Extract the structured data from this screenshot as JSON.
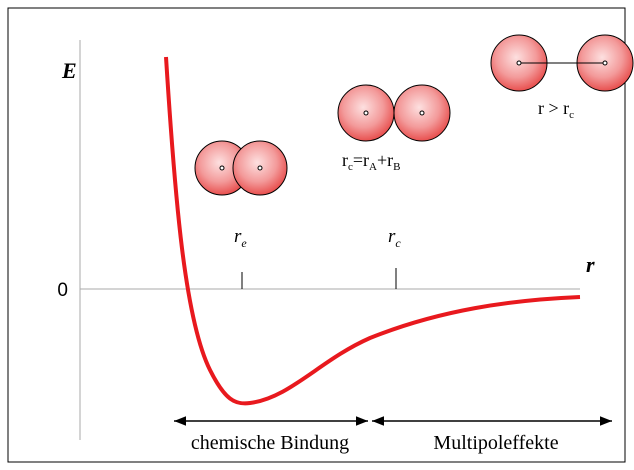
{
  "axes": {
    "y_label": "E",
    "x_label": "r",
    "zero": "0"
  },
  "markers": [
    {
      "parts": [
        {
          "text": "r"
        },
        {
          "text": "e",
          "sub": true
        }
      ]
    },
    {
      "parts": [
        {
          "text": "r"
        },
        {
          "text": "c",
          "sub": true
        }
      ]
    }
  ],
  "atoms": [
    {
      "parts": [
        {
          "text": "r"
        },
        {
          "text": "c",
          "sub": true
        },
        {
          "text": "=r"
        },
        {
          "text": "A",
          "sub": true
        },
        {
          "text": "+r"
        },
        {
          "text": "B",
          "sub": true
        }
      ]
    },
    {
      "parts": [
        {
          "text": "r > r"
        },
        {
          "text": "c",
          "sub": true
        }
      ]
    }
  ],
  "regions": [
    "chemische Bindung",
    "Multipoleffekte"
  ]
}
